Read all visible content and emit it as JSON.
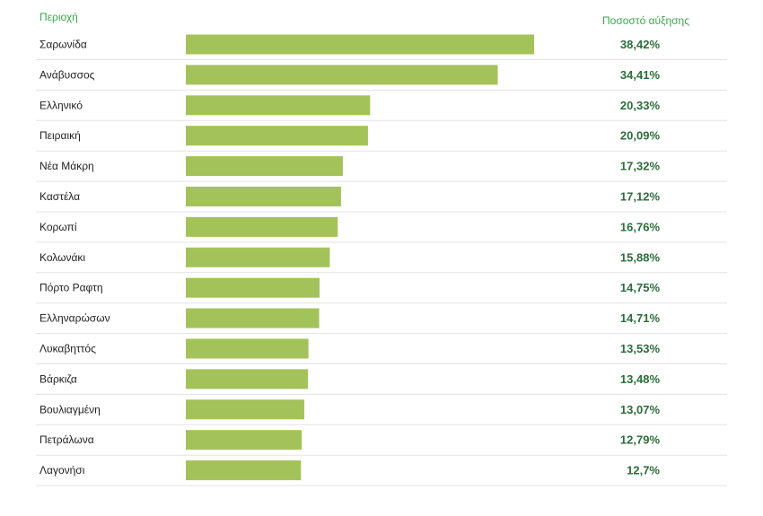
{
  "chart_data": {
    "type": "bar",
    "orientation": "horizontal",
    "header_category": "Περιοχή",
    "header_value": "Ποσοστό αύξησης",
    "categories": [
      "Σαρωνίδα",
      "Ανάβυσσος",
      "Ελληνικό",
      "Πειραική",
      "Νέα Μάκρη",
      "Καστέλα",
      "Κορωπί",
      "Κολωνάκι",
      "Πόρτο Ραφτη",
      "Ελληναρώσων",
      "Λυκαβηττός",
      "Βάρκιζα",
      "Βουλιαγμένη",
      "Πετράλωνα",
      "Λαγονήσι"
    ],
    "values": [
      38.42,
      34.41,
      20.33,
      20.09,
      17.32,
      17.12,
      16.76,
      15.88,
      14.75,
      14.71,
      13.53,
      13.48,
      13.07,
      12.79,
      12.7
    ],
    "value_labels": [
      "38,42%",
      "34,41%",
      "20,33%",
      "20,09%",
      "17,32%",
      "17,12%",
      "16,76%",
      "15,88%",
      "14,75%",
      "14,71%",
      "13,53%",
      "13,48%",
      "13,07%",
      "12,79%",
      "12,7%"
    ],
    "bar_color": "#a3c35a",
    "header_color": "#3aa84a",
    "value_color": "#2a6e3a"
  }
}
